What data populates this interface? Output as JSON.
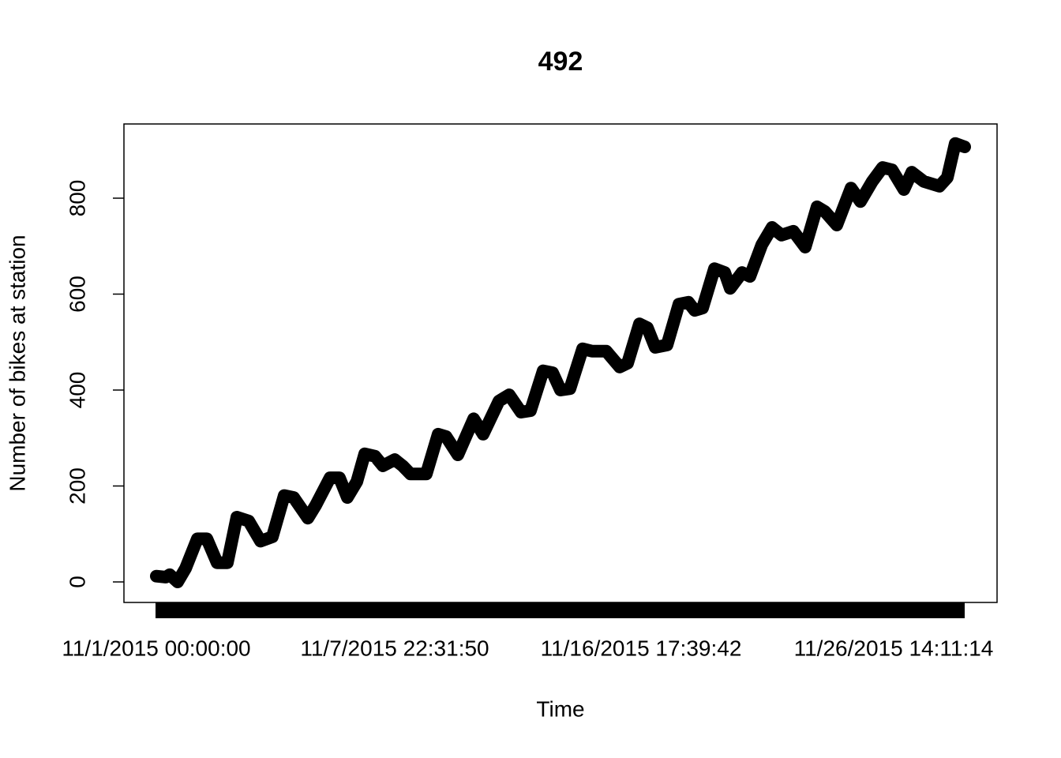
{
  "chart_data": {
    "type": "line",
    "title": "492",
    "x_label": "Time",
    "y_label": "Number of bikes at station",
    "x": [
      0,
      12,
      17,
      27,
      37,
      52,
      64,
      77,
      90,
      102,
      117,
      132,
      147,
      162,
      174,
      192,
      202,
      220,
      232,
      242,
      254,
      264,
      277,
      287,
      302,
      312,
      322,
      342,
      357,
      367,
      382,
      402,
      414,
      434,
      447,
      462,
      474,
      490,
      502,
      512,
      524,
      540,
      552,
      570,
      587,
      597,
      612,
      622,
      632,
      647,
      662,
      674,
      682,
      692,
      707,
      720,
      727,
      742,
      752,
      767,
      780,
      792,
      807,
      822,
      837,
      847,
      862,
      880,
      892,
      907,
      920,
      932,
      947,
      957,
      972,
      992,
      1002,
      1012,
      1024
    ],
    "series": [
      {
        "name": "bikes",
        "color": "#000000",
        "values": [
          12,
          10,
          15,
          0,
          28,
          90,
          90,
          40,
          40,
          135,
          127,
          85,
          94,
          180,
          176,
          133,
          160,
          217,
          217,
          176,
          209,
          267,
          262,
          242,
          255,
          242,
          225,
          225,
          308,
          303,
          265,
          340,
          308,
          377,
          390,
          354,
          357,
          440,
          436,
          400,
          403,
          486,
          481,
          481,
          448,
          456,
          538,
          530,
          489,
          494,
          579,
          583,
          566,
          571,
          653,
          645,
          612,
          645,
          637,
          703,
          739,
          723,
          731,
          698,
          782,
          772,
          744,
          821,
          793,
          835,
          864,
          859,
          818,
          854,
          835,
          825,
          843,
          914,
          907
        ]
      }
    ],
    "xlim": [
      -41,
      1065
    ],
    "xticks": [
      {
        "value": 0,
        "label": "11/1/2015 00:00:00"
      },
      {
        "value": 302,
        "label": "11/7/2015 22:31:50"
      },
      {
        "value": 614,
        "label": "11/16/2015 17:39:42"
      },
      {
        "value": 934,
        "label": "11/26/2015 14:11:14"
      }
    ],
    "ylim": [
      -42.8,
      954.7
    ],
    "yticks": [
      0,
      200,
      400,
      600,
      800
    ]
  }
}
